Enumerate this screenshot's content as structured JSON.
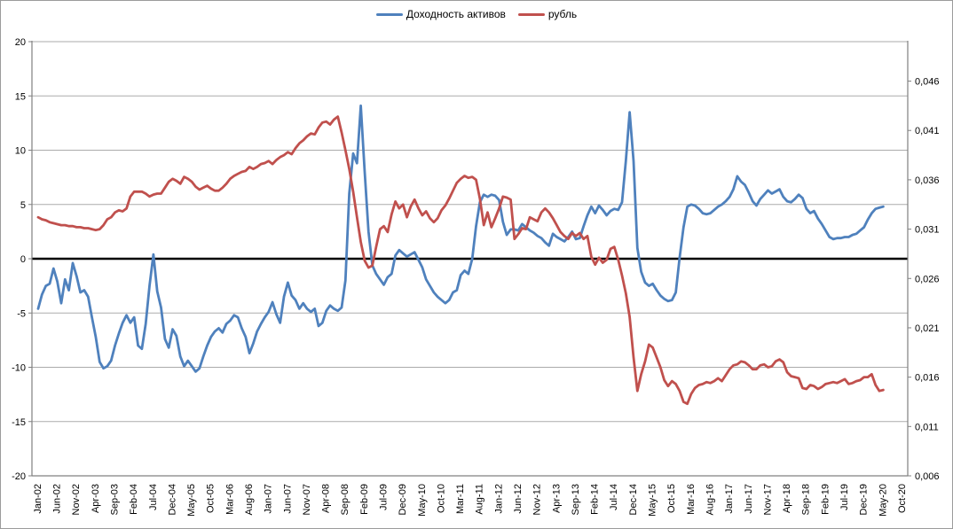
{
  "legend": {
    "items": [
      {
        "label": "Доходность активов",
        "color": "#4F81BD"
      },
      {
        "label": "рубль",
        "color": "#C0504D"
      }
    ]
  },
  "colors": {
    "grid": "#ABABAB",
    "axis": "#808080",
    "zero_line": "#000000",
    "text": "#000000"
  },
  "chart_data": {
    "type": "line",
    "title": "",
    "x_start": "Jan-02",
    "x_end": "Oct-20",
    "x_tick_labels": [
      "Jan-02",
      "Jun-02",
      "Nov-02",
      "Apr-03",
      "Sep-03",
      "Feb-04",
      "Jul-04",
      "Dec-04",
      "May-05",
      "Oct-05",
      "Mar-06",
      "Aug-06",
      "Jan-07",
      "Jun-07",
      "Nov-07",
      "Apr-08",
      "Sep-08",
      "Feb-09",
      "Jul-09",
      "Dec-09",
      "May-10",
      "Oct-10",
      "Mar-11",
      "Aug-11",
      "Jan-12",
      "Jun-12",
      "Nov-12",
      "Apr-13",
      "Sep-13",
      "Feb-14",
      "Jul-14",
      "Dec-14",
      "May-15",
      "Oct-15",
      "Mar-16",
      "Aug-16",
      "Jan-17",
      "Jun-17",
      "Nov-17",
      "Apr-18",
      "Sep-18",
      "Feb-19",
      "Jul-19",
      "Dec-19",
      "May-20",
      "Oct-20"
    ],
    "x_tick_step_months": 5,
    "left_axis": {
      "min": -20,
      "max": 20,
      "tick_labels": [
        "20",
        "15",
        "10",
        "5",
        "0",
        "-5",
        "-10",
        "-15",
        "-20"
      ],
      "tick_values": [
        20,
        15,
        10,
        5,
        0,
        -5,
        -10,
        -15,
        -20
      ]
    },
    "right_axis": {
      "min": 0.006,
      "max": 0.05,
      "tick_labels": [
        "0,046",
        "0,041",
        "0,036",
        "0,031",
        "0,026",
        "0,021",
        "0,016",
        "0,011",
        "0,006"
      ],
      "tick_values": [
        0.046,
        0.041,
        0.036,
        0.031,
        0.026,
        0.021,
        0.016,
        0.011,
        0.006
      ]
    },
    "grid": "horizontal-only",
    "legend_position": "top-center",
    "series": [
      {
        "name": "Доходность активов",
        "axis": "left",
        "color": "#4F81BD",
        "start_month": "Jan-02",
        "end_month": "May-20",
        "values": [
          -4.6,
          -3.3,
          -2.5,
          -2.3,
          -0.9,
          -2.1,
          -4.1,
          -1.9,
          -2.9,
          -0.4,
          -1.6,
          -3.1,
          -2.9,
          -3.5,
          -5.4,
          -7.2,
          -9.5,
          -10.1,
          -9.9,
          -9.4,
          -8.0,
          -6.9,
          -5.9,
          -5.2,
          -5.9,
          -5.4,
          -8.0,
          -8.3,
          -6.0,
          -2.5,
          0.4,
          -3.0,
          -4.5,
          -7.4,
          -8.2,
          -6.5,
          -7.1,
          -9.0,
          -9.9,
          -9.4,
          -9.9,
          -10.4,
          -10.1,
          -9.0,
          -8.0,
          -7.2,
          -6.7,
          -6.4,
          -6.8,
          -6.0,
          -5.7,
          -5.2,
          -5.4,
          -6.4,
          -7.2,
          -8.7,
          -7.8,
          -6.7,
          -6.0,
          -5.4,
          -4.9,
          -4.0,
          -5.1,
          -5.9,
          -3.5,
          -2.2,
          -3.4,
          -3.8,
          -4.6,
          -4.1,
          -4.6,
          -4.9,
          -4.6,
          -6.2,
          -5.9,
          -4.8,
          -4.3,
          -4.6,
          -4.8,
          -4.5,
          -2.0,
          6.0,
          9.7,
          8.8,
          14.1,
          8.0,
          2.5,
          -0.6,
          -1.4,
          -1.9,
          -2.4,
          -1.7,
          -1.4,
          0.3,
          0.8,
          0.5,
          0.2,
          0.4,
          0.6,
          -0.1,
          -0.8,
          -1.9,
          -2.5,
          -3.1,
          -3.5,
          -3.8,
          -4.1,
          -3.8,
          -3.1,
          -2.9,
          -1.5,
          -1.1,
          -1.4,
          0.0,
          3.0,
          5.2,
          5.9,
          5.7,
          5.9,
          5.8,
          5.4,
          3.4,
          2.2,
          2.7,
          2.7,
          2.6,
          3.2,
          2.9,
          2.6,
          2.4,
          2.1,
          1.9,
          1.5,
          1.2,
          2.3,
          2.0,
          1.8,
          1.6,
          2.0,
          2.5,
          1.8,
          1.9,
          3.0,
          4.0,
          4.8,
          4.2,
          4.9,
          4.5,
          4.0,
          4.4,
          4.6,
          4.5,
          5.2,
          9.0,
          13.5,
          9.0,
          1.0,
          -1.2,
          -2.2,
          -2.5,
          -2.3,
          -2.9,
          -3.4,
          -3.7,
          -3.9,
          -3.8,
          -3.1,
          0.1,
          2.9,
          4.8,
          5.0,
          4.9,
          4.6,
          4.2,
          4.1,
          4.2,
          4.5,
          4.8,
          5.0,
          5.3,
          5.7,
          6.4,
          7.6,
          7.1,
          6.8,
          6.1,
          5.3,
          4.9,
          5.5,
          5.9,
          6.3,
          6.0,
          6.2,
          6.4,
          5.7,
          5.3,
          5.2,
          5.5,
          5.9,
          5.6,
          4.6,
          4.2,
          4.4,
          3.7,
          3.2,
          2.6,
          2.0,
          1.8,
          1.9,
          1.9,
          2.0,
          2.0,
          2.2,
          2.3,
          2.6,
          2.9,
          3.6,
          4.2,
          4.6,
          4.7,
          4.8
        ]
      },
      {
        "name": "рубль",
        "axis": "right",
        "color": "#C0504D",
        "start_month": "Jan-02",
        "end_month": "May-20",
        "values": [
          0.0322,
          0.032,
          0.0319,
          0.0317,
          0.0316,
          0.0315,
          0.0314,
          0.0314,
          0.0313,
          0.0313,
          0.0312,
          0.0312,
          0.0311,
          0.0311,
          0.031,
          0.0309,
          0.031,
          0.0314,
          0.032,
          0.0322,
          0.0327,
          0.0329,
          0.0328,
          0.0331,
          0.0343,
          0.0348,
          0.0348,
          0.0348,
          0.0346,
          0.0343,
          0.0345,
          0.0346,
          0.0346,
          0.0352,
          0.0358,
          0.0361,
          0.0359,
          0.0356,
          0.0363,
          0.0361,
          0.0358,
          0.0353,
          0.035,
          0.0352,
          0.0354,
          0.0351,
          0.0349,
          0.0349,
          0.0352,
          0.0356,
          0.0361,
          0.0364,
          0.0366,
          0.0368,
          0.0369,
          0.0373,
          0.0371,
          0.0373,
          0.0376,
          0.0377,
          0.0379,
          0.0376,
          0.038,
          0.0383,
          0.0385,
          0.0388,
          0.0386,
          0.0392,
          0.0397,
          0.04,
          0.0404,
          0.0407,
          0.0406,
          0.0413,
          0.0418,
          0.0419,
          0.0416,
          0.0421,
          0.0424,
          0.0408,
          0.039,
          0.0371,
          0.0348,
          0.0322,
          0.0297,
          0.0278,
          0.0271,
          0.0273,
          0.0292,
          0.031,
          0.0313,
          0.0307,
          0.0325,
          0.0338,
          0.0331,
          0.0335,
          0.0322,
          0.0333,
          0.034,
          0.0331,
          0.0324,
          0.0328,
          0.0321,
          0.0317,
          0.0321,
          0.0329,
          0.0334,
          0.0341,
          0.0349,
          0.0357,
          0.0361,
          0.0364,
          0.0362,
          0.0363,
          0.036,
          0.0341,
          0.0314,
          0.0327,
          0.0312,
          0.0321,
          0.0331,
          0.0343,
          0.0342,
          0.034,
          0.03,
          0.0305,
          0.0311,
          0.031,
          0.0322,
          0.032,
          0.0318,
          0.0327,
          0.0331,
          0.0327,
          0.0321,
          0.0314,
          0.0307,
          0.0303,
          0.03,
          0.0306,
          0.0303,
          0.0306,
          0.03,
          0.0303,
          0.0282,
          0.0274,
          0.0281,
          0.0276,
          0.0279,
          0.029,
          0.0292,
          0.0279,
          0.0263,
          0.0245,
          0.0221,
          0.018,
          0.0146,
          0.0163,
          0.0176,
          0.0193,
          0.019,
          0.018,
          0.017,
          0.0157,
          0.0151,
          0.0156,
          0.0153,
          0.0146,
          0.0135,
          0.0133,
          0.0143,
          0.0149,
          0.0152,
          0.0153,
          0.0155,
          0.0154,
          0.0156,
          0.0159,
          0.0156,
          0.0162,
          0.0168,
          0.0172,
          0.0173,
          0.0176,
          0.0175,
          0.0172,
          0.0168,
          0.0168,
          0.0172,
          0.0173,
          0.017,
          0.0171,
          0.0176,
          0.0178,
          0.0175,
          0.0165,
          0.0161,
          0.016,
          0.0159,
          0.0149,
          0.0148,
          0.0152,
          0.0151,
          0.0148,
          0.015,
          0.0153,
          0.0154,
          0.0155,
          0.0154,
          0.0156,
          0.0158,
          0.0153,
          0.0154,
          0.0156,
          0.0157,
          0.016,
          0.016,
          0.0163,
          0.0152,
          0.0146,
          0.0147
        ]
      }
    ]
  }
}
